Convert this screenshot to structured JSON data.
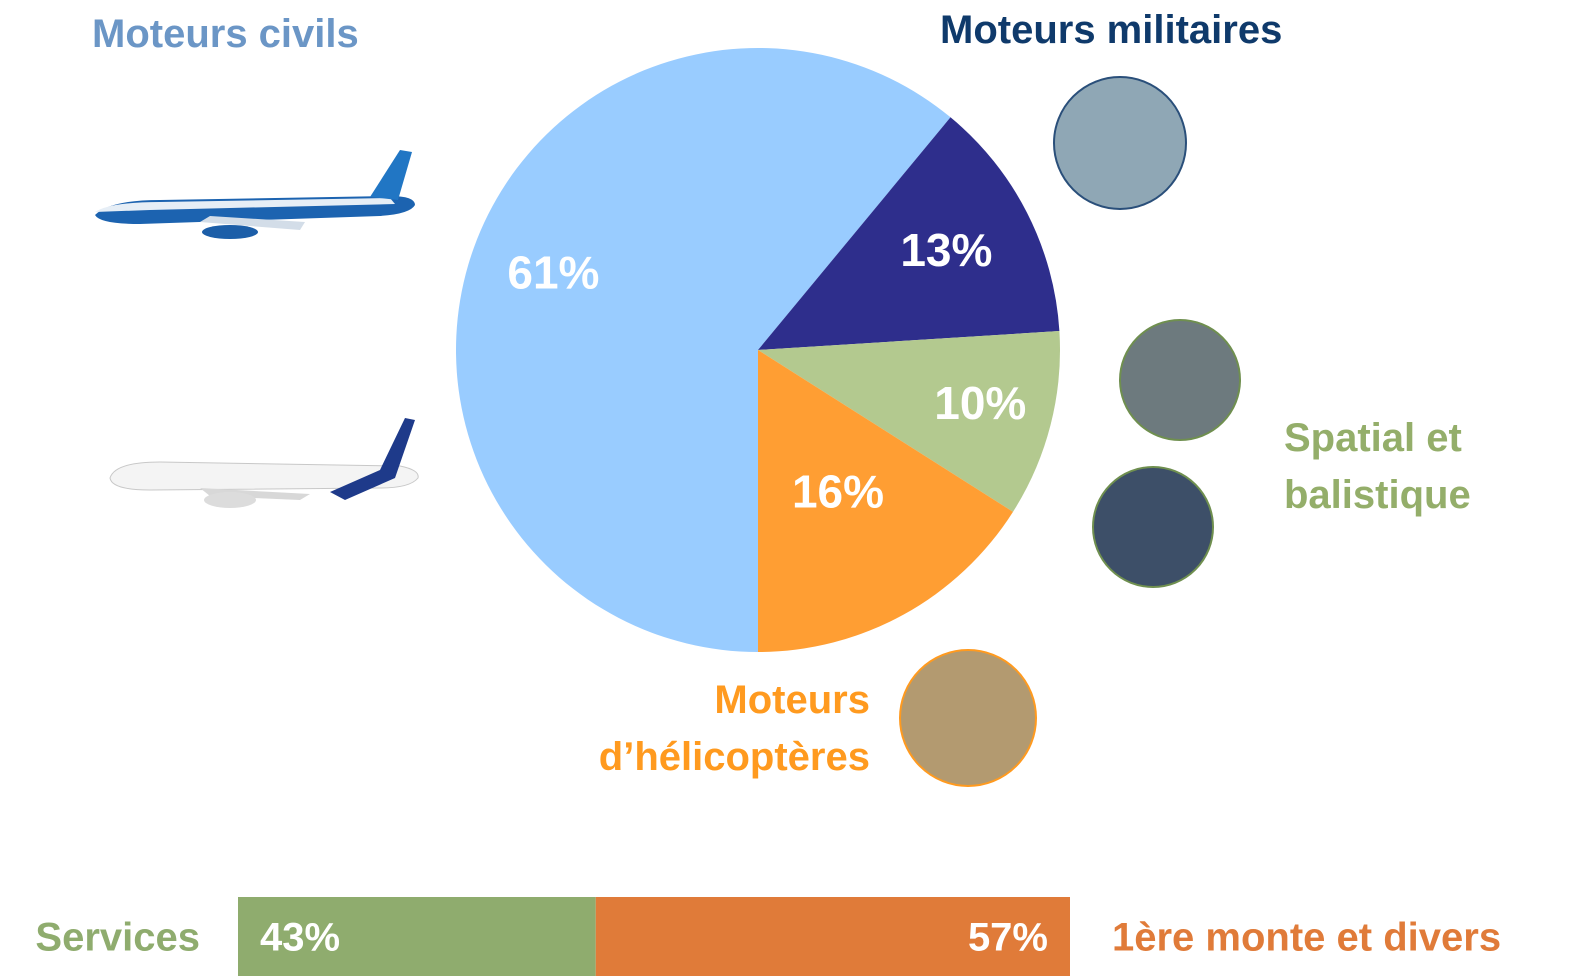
{
  "chart_data": [
    {
      "type": "pie",
      "categories": [
        "Moteurs civils",
        "Moteurs militaires",
        "Spatial et balistique",
        "Moteurs d’hélicoptères"
      ],
      "values": [
        61,
        13,
        10,
        16
      ],
      "value_labels": [
        "61%",
        "13%",
        "10%",
        "16%"
      ],
      "colors": [
        "#99ccff",
        "#2e2e8c",
        "#b3c98f",
        "#ff9e33"
      ],
      "label_colors": [
        "#6b96c6",
        "#0f3a6b",
        "#94ae6a",
        "#ff9a1f"
      ]
    },
    {
      "type": "bar",
      "orientation": "horizontal",
      "stacked": true,
      "series": [
        {
          "name": "Services",
          "color": "#8fac6e",
          "values": [
            43
          ],
          "value_labels": [
            "43%"
          ],
          "label_color": "#8fac6e"
        },
        {
          "name": "1ère monte et divers",
          "color": "#e07b39",
          "values": [
            57
          ],
          "value_labels": [
            "57%"
          ],
          "label_color": "#e07b39"
        }
      ]
    }
  ]
}
